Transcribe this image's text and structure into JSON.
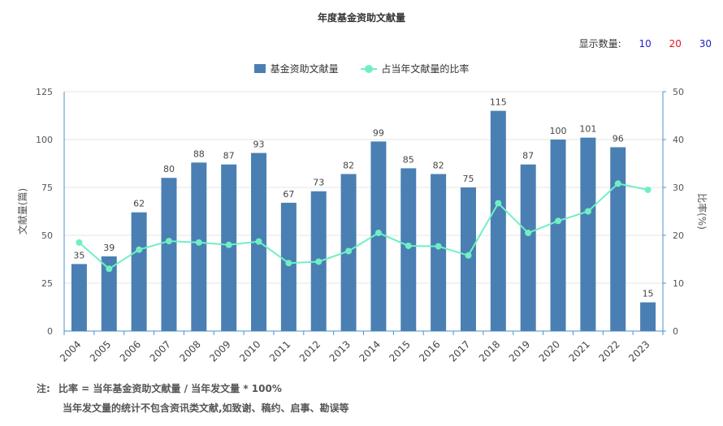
{
  "controls": {
    "display_label": "显示数量:",
    "options": [
      "10",
      "20",
      "30"
    ]
  },
  "notes": {
    "prefix": "注:",
    "line1": "比率 = 当年基金资助文献量 / 当年发文量 * 100%",
    "line2": "当年发文量的统计不包含资讯类文献,如致谢、稿约、启事、勘误等"
  },
  "colors": {
    "bar": "#4a7fb3",
    "line": "#6ff0c3",
    "axis": "#6e7079",
    "right_axis": "#4a90c9",
    "grid": "#e6e6e6"
  },
  "chart_data": {
    "type": "bar",
    "title": "年度基金资助文献量",
    "categories": [
      "2004",
      "2005",
      "2006",
      "2007",
      "2008",
      "2009",
      "2010",
      "2011",
      "2012",
      "2013",
      "2014",
      "2015",
      "2016",
      "2017",
      "2018",
      "2019",
      "2020",
      "2021",
      "2022",
      "2023"
    ],
    "series": [
      {
        "name": "基金资助文献量",
        "type": "bar",
        "axis": "left",
        "values": [
          35,
          39,
          62,
          80,
          88,
          87,
          93,
          67,
          73,
          82,
          99,
          85,
          82,
          75,
          115,
          87,
          100,
          101,
          96,
          15
        ]
      },
      {
        "name": "占当年文献量的比率",
        "type": "line",
        "axis": "right",
        "values": [
          18.5,
          13.0,
          17.0,
          18.8,
          18.5,
          18.0,
          18.7,
          14.2,
          14.5,
          16.7,
          20.5,
          17.8,
          17.7,
          15.8,
          26.7,
          20.5,
          23.0,
          25.0,
          30.8,
          29.5
        ]
      }
    ],
    "ylabel_left": "文献量(篇)",
    "ylabel_right": "比率(%)",
    "ylim_left": [
      0,
      125
    ],
    "ylim_right": [
      0,
      50
    ],
    "yticks_left": [
      "0",
      "25",
      "50",
      "75",
      "100",
      "125"
    ],
    "yticks_right": [
      "0",
      "10",
      "20",
      "30",
      "40",
      "50"
    ],
    "grid": true,
    "legend": "top-center",
    "data_labels": true
  }
}
